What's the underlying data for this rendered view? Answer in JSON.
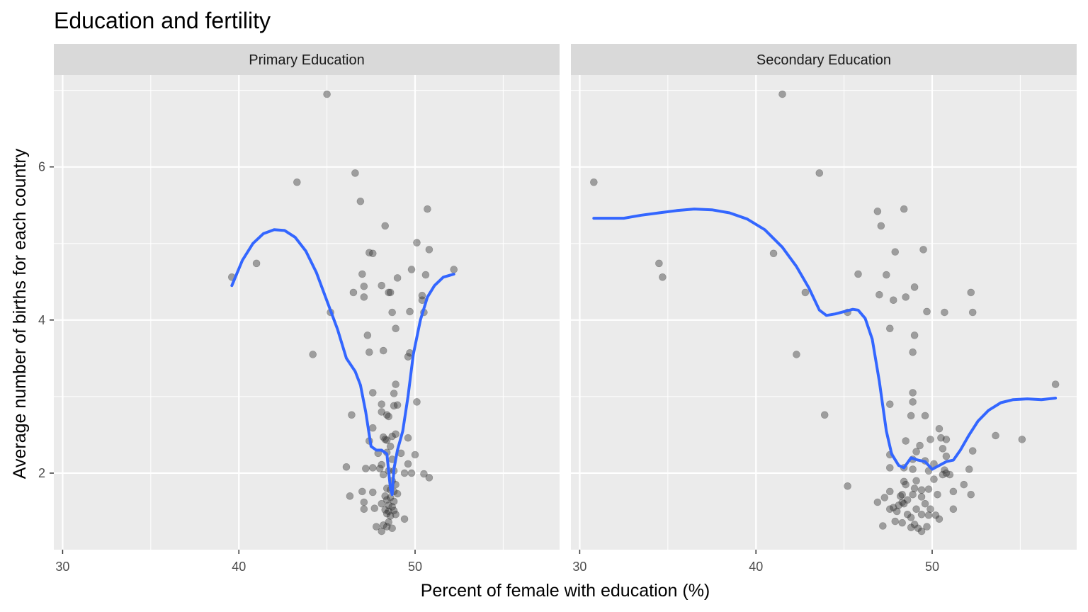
{
  "chart_data": {
    "type": "scatter",
    "title": "Education and fertility",
    "xlabel": "Percent of female with education (%)",
    "ylabel": "Average number of births for each country",
    "xlim": [
      29.5,
      58.2
    ],
    "ylim": [
      1.0,
      7.2
    ],
    "x_ticks": [
      30,
      40,
      50
    ],
    "x_minor": [
      35,
      45,
      55
    ],
    "y_ticks": [
      2,
      4,
      6
    ],
    "y_minor": [
      3,
      5,
      7
    ],
    "panels": [
      {
        "label": "Primary Education",
        "points": [
          [
            45.0,
            6.95
          ],
          [
            46.6,
            5.92
          ],
          [
            43.3,
            5.8
          ],
          [
            46.9,
            5.55
          ],
          [
            50.7,
            5.45
          ],
          [
            48.3,
            5.23
          ],
          [
            50.1,
            5.01
          ],
          [
            50.8,
            4.92
          ],
          [
            47.6,
            4.87
          ],
          [
            47.4,
            4.88
          ],
          [
            41.0,
            4.74
          ],
          [
            39.6,
            4.56
          ],
          [
            49.8,
            4.66
          ],
          [
            52.2,
            4.66
          ],
          [
            47.0,
            4.6
          ],
          [
            50.6,
            4.59
          ],
          [
            49.0,
            4.55
          ],
          [
            47.1,
            4.44
          ],
          [
            48.1,
            4.45
          ],
          [
            48.6,
            4.36
          ],
          [
            48.5,
            4.36
          ],
          [
            46.5,
            4.36
          ],
          [
            47.1,
            4.3
          ],
          [
            50.4,
            4.32
          ],
          [
            50.4,
            4.26
          ],
          [
            45.2,
            4.1
          ],
          [
            48.7,
            4.1
          ],
          [
            49.7,
            4.11
          ],
          [
            50.5,
            4.1
          ],
          [
            48.9,
            3.89
          ],
          [
            47.3,
            3.8
          ],
          [
            48.2,
            3.6
          ],
          [
            47.4,
            3.58
          ],
          [
            44.2,
            3.55
          ],
          [
            49.6,
            3.52
          ],
          [
            49.7,
            3.57
          ],
          [
            48.9,
            3.16
          ],
          [
            47.6,
            3.05
          ],
          [
            48.8,
            3.04
          ],
          [
            48.1,
            2.9
          ],
          [
            48.8,
            2.88
          ],
          [
            49.0,
            2.89
          ],
          [
            50.1,
            2.93
          ],
          [
            48.4,
            2.76
          ],
          [
            46.4,
            2.76
          ],
          [
            48.1,
            2.8
          ],
          [
            48.5,
            2.74
          ],
          [
            47.6,
            2.59
          ],
          [
            48.7,
            2.48
          ],
          [
            48.9,
            2.51
          ],
          [
            48.2,
            2.47
          ],
          [
            48.3,
            2.44
          ],
          [
            48.4,
            2.43
          ],
          [
            49.6,
            2.46
          ],
          [
            47.4,
            2.42
          ],
          [
            48.6,
            2.35
          ],
          [
            47.9,
            2.26
          ],
          [
            48.4,
            2.27
          ],
          [
            49.2,
            2.26
          ],
          [
            48.7,
            2.18
          ],
          [
            49.6,
            2.12
          ],
          [
            50.0,
            2.24
          ],
          [
            48.1,
            2.11
          ],
          [
            47.6,
            2.07
          ],
          [
            46.1,
            2.08
          ],
          [
            47.2,
            2.06
          ],
          [
            48.0,
            2.06
          ],
          [
            48.5,
            2.03
          ],
          [
            48.8,
            2.03
          ],
          [
            49.4,
            2.0
          ],
          [
            49.8,
            2.0
          ],
          [
            50.5,
            1.99
          ],
          [
            50.8,
            1.94
          ],
          [
            48.2,
            1.98
          ],
          [
            48.7,
            1.9
          ],
          [
            48.9,
            1.85
          ],
          [
            48.4,
            1.8
          ],
          [
            48.6,
            1.78
          ],
          [
            48.8,
            1.76
          ],
          [
            47.0,
            1.76
          ],
          [
            47.6,
            1.75
          ],
          [
            49.0,
            1.73
          ],
          [
            48.3,
            1.7
          ],
          [
            46.3,
            1.7
          ],
          [
            48.6,
            1.68
          ],
          [
            48.4,
            1.65
          ],
          [
            48.8,
            1.63
          ],
          [
            47.1,
            1.62
          ],
          [
            48.1,
            1.6
          ],
          [
            48.5,
            1.58
          ],
          [
            48.7,
            1.56
          ],
          [
            47.7,
            1.54
          ],
          [
            47.1,
            1.53
          ],
          [
            48.3,
            1.52
          ],
          [
            48.8,
            1.51
          ],
          [
            48.5,
            1.5
          ],
          [
            48.4,
            1.47
          ],
          [
            48.9,
            1.46
          ],
          [
            48.6,
            1.44
          ],
          [
            49.4,
            1.4
          ],
          [
            48.5,
            1.36
          ],
          [
            48.2,
            1.32
          ],
          [
            48.4,
            1.3
          ],
          [
            47.8,
            1.3
          ],
          [
            48.7,
            1.28
          ],
          [
            48.1,
            1.24
          ]
        ],
        "smooth": [
          [
            39.6,
            4.45
          ],
          [
            40.2,
            4.78
          ],
          [
            40.8,
            5.0
          ],
          [
            41.4,
            5.13
          ],
          [
            42.0,
            5.18
          ],
          [
            42.6,
            5.17
          ],
          [
            43.2,
            5.08
          ],
          [
            43.8,
            4.9
          ],
          [
            44.4,
            4.62
          ],
          [
            45.0,
            4.25
          ],
          [
            45.6,
            3.88
          ],
          [
            46.1,
            3.5
          ],
          [
            46.6,
            3.33
          ],
          [
            46.9,
            3.15
          ],
          [
            47.2,
            2.8
          ],
          [
            47.5,
            2.35
          ],
          [
            47.8,
            2.3
          ],
          [
            48.1,
            2.3
          ],
          [
            48.4,
            2.25
          ],
          [
            48.6,
            1.8
          ],
          [
            48.7,
            1.72
          ],
          [
            48.8,
            2.05
          ],
          [
            49.0,
            2.3
          ],
          [
            49.3,
            2.55
          ],
          [
            49.6,
            3.0
          ],
          [
            49.9,
            3.55
          ],
          [
            50.3,
            4.0
          ],
          [
            50.7,
            4.3
          ],
          [
            51.1,
            4.45
          ],
          [
            51.6,
            4.56
          ],
          [
            52.2,
            4.6
          ]
        ]
      },
      {
        "label": "Secondary Education",
        "points": [
          [
            41.5,
            6.95
          ],
          [
            43.6,
            5.92
          ],
          [
            30.8,
            5.8
          ],
          [
            46.9,
            5.42
          ],
          [
            48.4,
            5.45
          ],
          [
            47.1,
            5.23
          ],
          [
            41.0,
            4.87
          ],
          [
            47.9,
            4.89
          ],
          [
            49.5,
            4.92
          ],
          [
            34.5,
            4.74
          ],
          [
            34.7,
            4.56
          ],
          [
            45.8,
            4.6
          ],
          [
            47.4,
            4.59
          ],
          [
            49.0,
            4.43
          ],
          [
            42.8,
            4.36
          ],
          [
            52.2,
            4.36
          ],
          [
            47.0,
            4.33
          ],
          [
            48.5,
            4.3
          ],
          [
            47.8,
            4.26
          ],
          [
            49.7,
            4.11
          ],
          [
            50.7,
            4.1
          ],
          [
            52.3,
            4.1
          ],
          [
            45.2,
            4.1
          ],
          [
            47.6,
            3.89
          ],
          [
            49.0,
            3.8
          ],
          [
            42.3,
            3.55
          ],
          [
            48.9,
            3.58
          ],
          [
            48.9,
            3.05
          ],
          [
            47.6,
            2.9
          ],
          [
            48.9,
            2.93
          ],
          [
            49.6,
            2.75
          ],
          [
            48.8,
            2.75
          ],
          [
            43.9,
            2.76
          ],
          [
            50.4,
            2.58
          ],
          [
            53.6,
            2.49
          ],
          [
            55.1,
            2.44
          ],
          [
            48.5,
            2.42
          ],
          [
            49.9,
            2.44
          ],
          [
            50.5,
            2.46
          ],
          [
            50.8,
            2.44
          ],
          [
            49.3,
            2.36
          ],
          [
            49.1,
            2.28
          ],
          [
            50.6,
            2.32
          ],
          [
            52.3,
            2.29
          ],
          [
            50.8,
            2.22
          ],
          [
            47.6,
            2.24
          ],
          [
            48.9,
            2.18
          ],
          [
            49.6,
            2.16
          ],
          [
            50.1,
            2.12
          ],
          [
            48.4,
            2.07
          ],
          [
            47.6,
            2.07
          ],
          [
            48.9,
            2.05
          ],
          [
            49.8,
            2.03
          ],
          [
            50.7,
            2.04
          ],
          [
            50.8,
            2.0
          ],
          [
            52.1,
            2.05
          ],
          [
            49.1,
            1.9
          ],
          [
            48.4,
            1.89
          ],
          [
            50.1,
            1.92
          ],
          [
            50.6,
            1.98
          ],
          [
            51.0,
            1.98
          ],
          [
            45.2,
            1.83
          ],
          [
            48.5,
            1.85
          ],
          [
            49.0,
            1.8
          ],
          [
            49.4,
            1.78
          ],
          [
            49.8,
            1.79
          ],
          [
            51.2,
            1.76
          ],
          [
            51.8,
            1.85
          ],
          [
            52.2,
            1.72
          ],
          [
            47.6,
            1.76
          ],
          [
            48.3,
            1.72
          ],
          [
            48.9,
            1.72
          ],
          [
            48.2,
            1.7
          ],
          [
            49.4,
            1.69
          ],
          [
            50.3,
            1.72
          ],
          [
            47.3,
            1.68
          ],
          [
            46.9,
            1.62
          ],
          [
            48.3,
            1.62
          ],
          [
            48.6,
            1.65
          ],
          [
            48.4,
            1.6
          ],
          [
            48.1,
            1.58
          ],
          [
            49.6,
            1.6
          ],
          [
            47.8,
            1.55
          ],
          [
            47.6,
            1.53
          ],
          [
            48.0,
            1.5
          ],
          [
            49.1,
            1.53
          ],
          [
            49.9,
            1.53
          ],
          [
            51.2,
            1.53
          ],
          [
            48.6,
            1.46
          ],
          [
            49.4,
            1.46
          ],
          [
            49.8,
            1.45
          ],
          [
            50.2,
            1.45
          ],
          [
            48.8,
            1.42
          ],
          [
            50.4,
            1.4
          ],
          [
            47.9,
            1.37
          ],
          [
            48.3,
            1.35
          ],
          [
            49.0,
            1.33
          ],
          [
            47.2,
            1.31
          ],
          [
            48.8,
            1.29
          ],
          [
            49.2,
            1.28
          ],
          [
            49.7,
            1.3
          ],
          [
            49.4,
            1.24
          ],
          [
            57.0,
            3.16
          ]
        ],
        "smooth": [
          [
            30.8,
            5.33
          ],
          [
            31.5,
            5.33
          ],
          [
            32.5,
            5.33
          ],
          [
            33.5,
            5.37
          ],
          [
            34.5,
            5.4
          ],
          [
            35.5,
            5.43
          ],
          [
            36.5,
            5.45
          ],
          [
            37.5,
            5.44
          ],
          [
            38.5,
            5.4
          ],
          [
            39.5,
            5.32
          ],
          [
            40.5,
            5.18
          ],
          [
            41.5,
            4.95
          ],
          [
            42.3,
            4.7
          ],
          [
            43.0,
            4.42
          ],
          [
            43.6,
            4.13
          ],
          [
            44.0,
            4.06
          ],
          [
            44.5,
            4.08
          ],
          [
            45.0,
            4.11
          ],
          [
            45.5,
            4.14
          ],
          [
            45.8,
            4.13
          ],
          [
            46.2,
            4.02
          ],
          [
            46.6,
            3.75
          ],
          [
            47.0,
            3.2
          ],
          [
            47.4,
            2.55
          ],
          [
            47.7,
            2.25
          ],
          [
            48.1,
            2.1
          ],
          [
            48.4,
            2.07
          ],
          [
            48.8,
            2.2
          ],
          [
            49.2,
            2.17
          ],
          [
            49.6,
            2.15
          ],
          [
            50.0,
            2.05
          ],
          [
            50.4,
            2.1
          ],
          [
            50.8,
            2.15
          ],
          [
            51.2,
            2.17
          ],
          [
            51.6,
            2.3
          ],
          [
            52.1,
            2.5
          ],
          [
            52.6,
            2.68
          ],
          [
            53.2,
            2.82
          ],
          [
            53.9,
            2.92
          ],
          [
            54.6,
            2.96
          ],
          [
            55.4,
            2.97
          ],
          [
            56.2,
            2.96
          ],
          [
            57.0,
            2.98
          ]
        ]
      }
    ],
    "colors": {
      "panel_background": "#ebebeb",
      "strip_background": "#d9d9d9",
      "grid": "#ffffff",
      "point": "#333333",
      "smooth": "#3366ff"
    }
  }
}
